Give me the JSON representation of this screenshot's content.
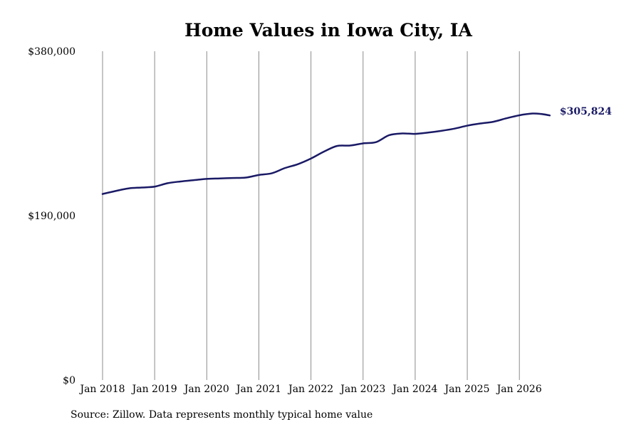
{
  "chart_data": {
    "type": "line",
    "title": "Home Values in Iowa City, IA",
    "ylim": [
      0,
      380000
    ],
    "yticks": [
      {
        "value": 0,
        "label": "$0"
      },
      {
        "value": 190000,
        "label": "$190,000"
      },
      {
        "value": 380000,
        "label": "$380,000"
      }
    ],
    "xlim": [
      "2017-12",
      "2026-09"
    ],
    "xticks": [
      {
        "date": "2018-01",
        "label": "Jan 2018"
      },
      {
        "date": "2019-01",
        "label": "Jan 2019"
      },
      {
        "date": "2020-01",
        "label": "Jan 2020"
      },
      {
        "date": "2021-01",
        "label": "Jan 2021"
      },
      {
        "date": "2022-01",
        "label": "Jan 2022"
      },
      {
        "date": "2023-01",
        "label": "Jan 2023"
      },
      {
        "date": "2024-01",
        "label": "Jan 2024"
      },
      {
        "date": "2025-01",
        "label": "Jan 2025"
      },
      {
        "date": "2026-01",
        "label": "Jan 2026"
      }
    ],
    "grid": "vertical",
    "series": [
      {
        "color": "#1a1a66",
        "points": [
          {
            "x": "2018-01",
            "y": 215000
          },
          {
            "x": "2018-04",
            "y": 218500
          },
          {
            "x": "2018-07",
            "y": 221500
          },
          {
            "x": "2018-10",
            "y": 222500
          },
          {
            "x": "2019-01",
            "y": 223500
          },
          {
            "x": "2019-04",
            "y": 227500
          },
          {
            "x": "2019-07",
            "y": 229500
          },
          {
            "x": "2019-10",
            "y": 231000
          },
          {
            "x": "2020-01",
            "y": 232500
          },
          {
            "x": "2020-04",
            "y": 233000
          },
          {
            "x": "2020-07",
            "y": 233500
          },
          {
            "x": "2020-10",
            "y": 234000
          },
          {
            "x": "2021-01",
            "y": 237000
          },
          {
            "x": "2021-04",
            "y": 239000
          },
          {
            "x": "2021-07",
            "y": 245000
          },
          {
            "x": "2021-10",
            "y": 249500
          },
          {
            "x": "2022-01",
            "y": 256000
          },
          {
            "x": "2022-04",
            "y": 264000
          },
          {
            "x": "2022-07",
            "y": 270500
          },
          {
            "x": "2022-10",
            "y": 271000
          },
          {
            "x": "2023-01",
            "y": 273500
          },
          {
            "x": "2023-04",
            "y": 275000
          },
          {
            "x": "2023-07",
            "y": 283000
          },
          {
            "x": "2023-10",
            "y": 285000
          },
          {
            "x": "2024-01",
            "y": 284500
          },
          {
            "x": "2024-04",
            "y": 286000
          },
          {
            "x": "2024-07",
            "y": 288000
          },
          {
            "x": "2024-10",
            "y": 290500
          },
          {
            "x": "2025-01",
            "y": 294000
          },
          {
            "x": "2025-04",
            "y": 296500
          },
          {
            "x": "2025-07",
            "y": 298500
          },
          {
            "x": "2025-10",
            "y": 302500
          },
          {
            "x": "2026-01",
            "y": 306000
          },
          {
            "x": "2026-04",
            "y": 308000
          },
          {
            "x": "2026-06",
            "y": 307500
          },
          {
            "x": "2026-08",
            "y": 305824
          }
        ]
      }
    ],
    "end_label": "$305,824",
    "source": "Source: Zillow. Data represents monthly typical home value"
  }
}
